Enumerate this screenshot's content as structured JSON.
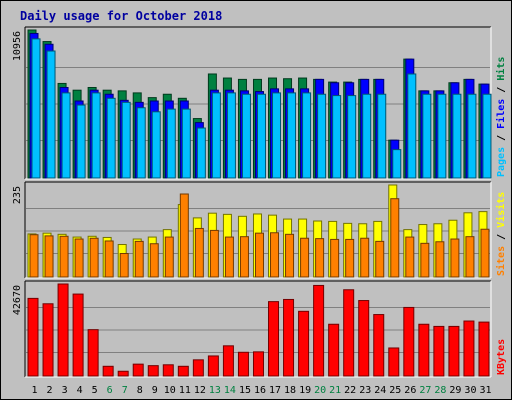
{
  "chart_data": {
    "type": "bar",
    "title": "Daily usage for October 2018",
    "days": [
      "1",
      "2",
      "3",
      "4",
      "5",
      "6",
      "7",
      "8",
      "9",
      "10",
      "11",
      "12",
      "13",
      "14",
      "15",
      "16",
      "17",
      "18",
      "19",
      "20",
      "21",
      "22",
      "23",
      "24",
      "25",
      "26",
      "27",
      "28",
      "29",
      "30",
      "31"
    ],
    "weekend_days": [
      "6",
      "7",
      "13",
      "14",
      "20",
      "21",
      "27",
      "28"
    ],
    "panels": [
      {
        "id": "hits",
        "ymax_label": "10956",
        "ymax": 10956,
        "axis_labels": [
          "Pages",
          "Files",
          "Hits"
        ],
        "series": [
          {
            "name": "Hits",
            "color": "#008040",
            "values": [
              10956,
              10100,
              7000,
              6500,
              6700,
              6500,
              6450,
              6300,
              5950,
              6200,
              5900,
              4400,
              7700,
              7400,
              7300,
              7300,
              7400,
              7350,
              7400,
              7300,
              7100,
              7100,
              7300,
              7300,
              2800,
              8800,
              6450,
              6450,
              7050,
              7300,
              6950
            ]
          },
          {
            "name": "Files",
            "color": "#0000ff",
            "values": [
              10700,
              9900,
              6700,
              5700,
              6500,
              6200,
              5750,
              5600,
              5700,
              5700,
              5700,
              4100,
              6500,
              6500,
              6450,
              6400,
              6600,
              6600,
              6600,
              7300,
              7050,
              7050,
              7300,
              7300,
              2800,
              8800,
              6450,
              6450,
              7050,
              7300,
              6950
            ]
          },
          {
            "name": "Pages",
            "color": "#00c0ff",
            "values": [
              10300,
              9400,
              6300,
              5400,
              6300,
              5900,
              5600,
              5200,
              4900,
              5100,
              5100,
              3700,
              6300,
              6300,
              6200,
              6200,
              6300,
              6300,
              6300,
              6200,
              6100,
              6100,
              6200,
              6200,
              2100,
              7700,
              6200,
              6200,
              6200,
              6200,
              6200
            ]
          }
        ]
      },
      {
        "id": "visits",
        "ymax_label": "235",
        "ymax": 235,
        "axis_labels": [
          "Sites",
          "Visits"
        ],
        "series": [
          {
            "name": "Visits",
            "color": "#ffff00",
            "values": [
              110,
              112,
              109,
              102,
              104,
              101,
              83,
              97,
              102,
              121,
              185,
              151,
              163,
              160,
              155,
              161,
              158,
              148,
              148,
              143,
              142,
              137,
              136,
              142,
              235,
              121,
              134,
              136,
              145,
              164,
              167
            ]
          },
          {
            "name": "Sites",
            "color": "#ff8000",
            "values": [
              108,
              105,
              104,
              97,
              99,
              92,
              60,
              91,
              85,
              102,
              212,
              124,
              119,
              102,
              103,
              112,
              113,
              109,
              99,
              98,
              96,
              96,
              99,
              91,
              200,
              102,
              86,
              90,
              97,
              103,
              122
            ]
          }
        ]
      },
      {
        "id": "kbytes",
        "ymax_label": "42670",
        "ymax": 42670,
        "axis_labels": [
          "KBytes"
        ],
        "series": [
          {
            "name": "KBytes",
            "color": "#ff0000",
            "values": [
              36000,
              33500,
              42670,
              38000,
              21500,
              4500,
              2200,
              5500,
              4800,
              5200,
              4500,
              7500,
              9300,
              14000,
              11000,
              11200,
              34500,
              35500,
              30000,
              42000,
              24000,
              40000,
              35000,
              28500,
              13000,
              31800,
              24000,
              23000,
              23000,
              25500,
              25000
            ]
          }
        ]
      }
    ]
  }
}
